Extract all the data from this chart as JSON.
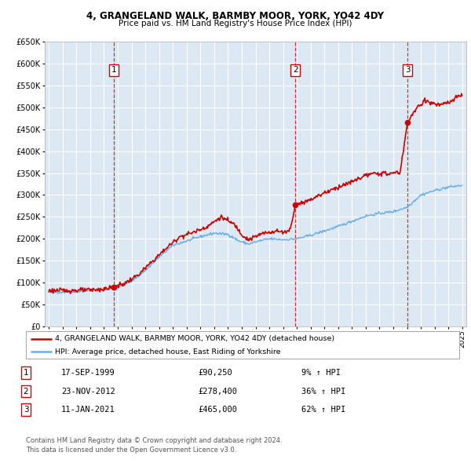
{
  "title": "4, GRANGELAND WALK, BARMBY MOOR, YORK, YO42 4DY",
  "subtitle": "Price paid vs. HM Land Registry's House Price Index (HPI)",
  "plot_bg_color": "#dce9f5",
  "hpi_color": "#6aade4",
  "price_color": "#cc0000",
  "grid_color": "#ffffff",
  "ylim": [
    0,
    650000
  ],
  "yticks": [
    0,
    50000,
    100000,
    150000,
    200000,
    250000,
    300000,
    350000,
    400000,
    450000,
    500000,
    550000,
    600000,
    650000
  ],
  "ytick_labels": [
    "£0",
    "£50K",
    "£100K",
    "£150K",
    "£200K",
    "£250K",
    "£300K",
    "£350K",
    "£400K",
    "£450K",
    "£500K",
    "£550K",
    "£600K",
    "£650K"
  ],
  "xmin_year": 1995,
  "xmax_year": 2025,
  "xtick_years": [
    1995,
    1996,
    1997,
    1998,
    1999,
    2000,
    2001,
    2002,
    2003,
    2004,
    2005,
    2006,
    2007,
    2008,
    2009,
    2010,
    2011,
    2012,
    2013,
    2014,
    2015,
    2016,
    2017,
    2018,
    2019,
    2020,
    2021,
    2022,
    2023,
    2024,
    2025
  ],
  "sale_year_floats": [
    1999.72,
    2012.9,
    2021.03
  ],
  "sale_prices": [
    90250,
    278400,
    465000
  ],
  "sale_labels": [
    "1",
    "2",
    "3"
  ],
  "sale_pct": [
    "9%",
    "36%",
    "62%"
  ],
  "sale_date_labels": [
    "17-SEP-1999",
    "23-NOV-2012",
    "11-JAN-2021"
  ],
  "sale_price_labels": [
    "£90,250",
    "£278,400",
    "£465,000"
  ],
  "legend_line1": "4, GRANGELAND WALK, BARMBY MOOR, YORK, YO42 4DY (detached house)",
  "legend_line2": "HPI: Average price, detached house, East Riding of Yorkshire",
  "footer1": "Contains HM Land Registry data © Crown copyright and database right 2024.",
  "footer2": "This data is licensed under the Open Government Licence v3.0."
}
